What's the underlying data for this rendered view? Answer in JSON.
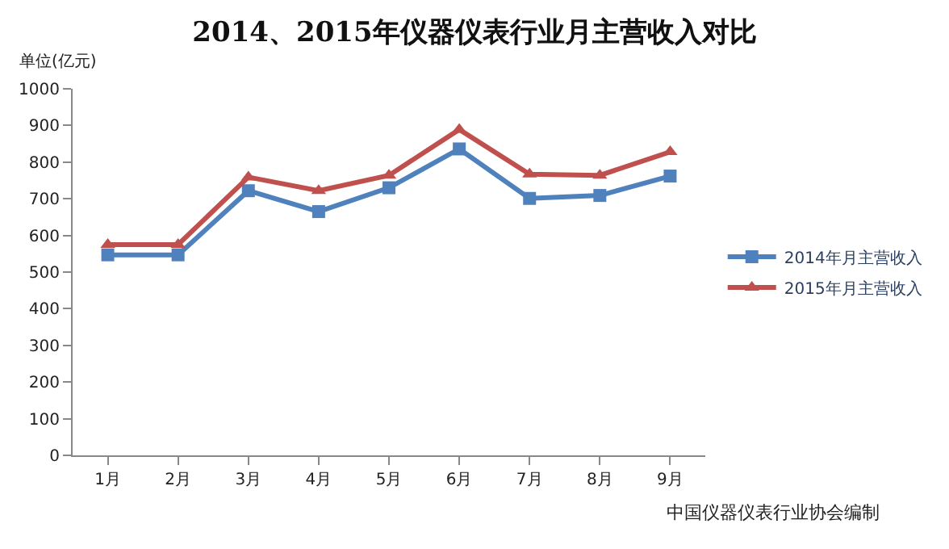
{
  "chart_data": {
    "type": "line",
    "title": "2014、2015年仪器仪表行业月主营收入对比",
    "ylabel": "单位(亿元)",
    "categories": [
      "1月",
      "2月",
      "3月",
      "4月",
      "5月",
      "6月",
      "7月",
      "8月",
      "9月"
    ],
    "series": [
      {
        "name": "2014年月主营收入",
        "color": "#4f81bd",
        "marker": "square",
        "values": [
          547,
          547,
          722,
          665,
          730,
          836,
          701,
          709,
          762
        ]
      },
      {
        "name": "2015年月主营收入",
        "color": "#c0504d",
        "marker": "triangle",
        "values": [
          575,
          575,
          759,
          722,
          764,
          889,
          767,
          764,
          828
        ]
      }
    ],
    "ylim": [
      0,
      1000
    ],
    "yticks": [
      0,
      100,
      200,
      300,
      400,
      500,
      600,
      700,
      800,
      900,
      1000
    ],
    "grid": false,
    "legend": "right",
    "annotations": [
      "中国仪器仪表行业协会编制"
    ]
  }
}
